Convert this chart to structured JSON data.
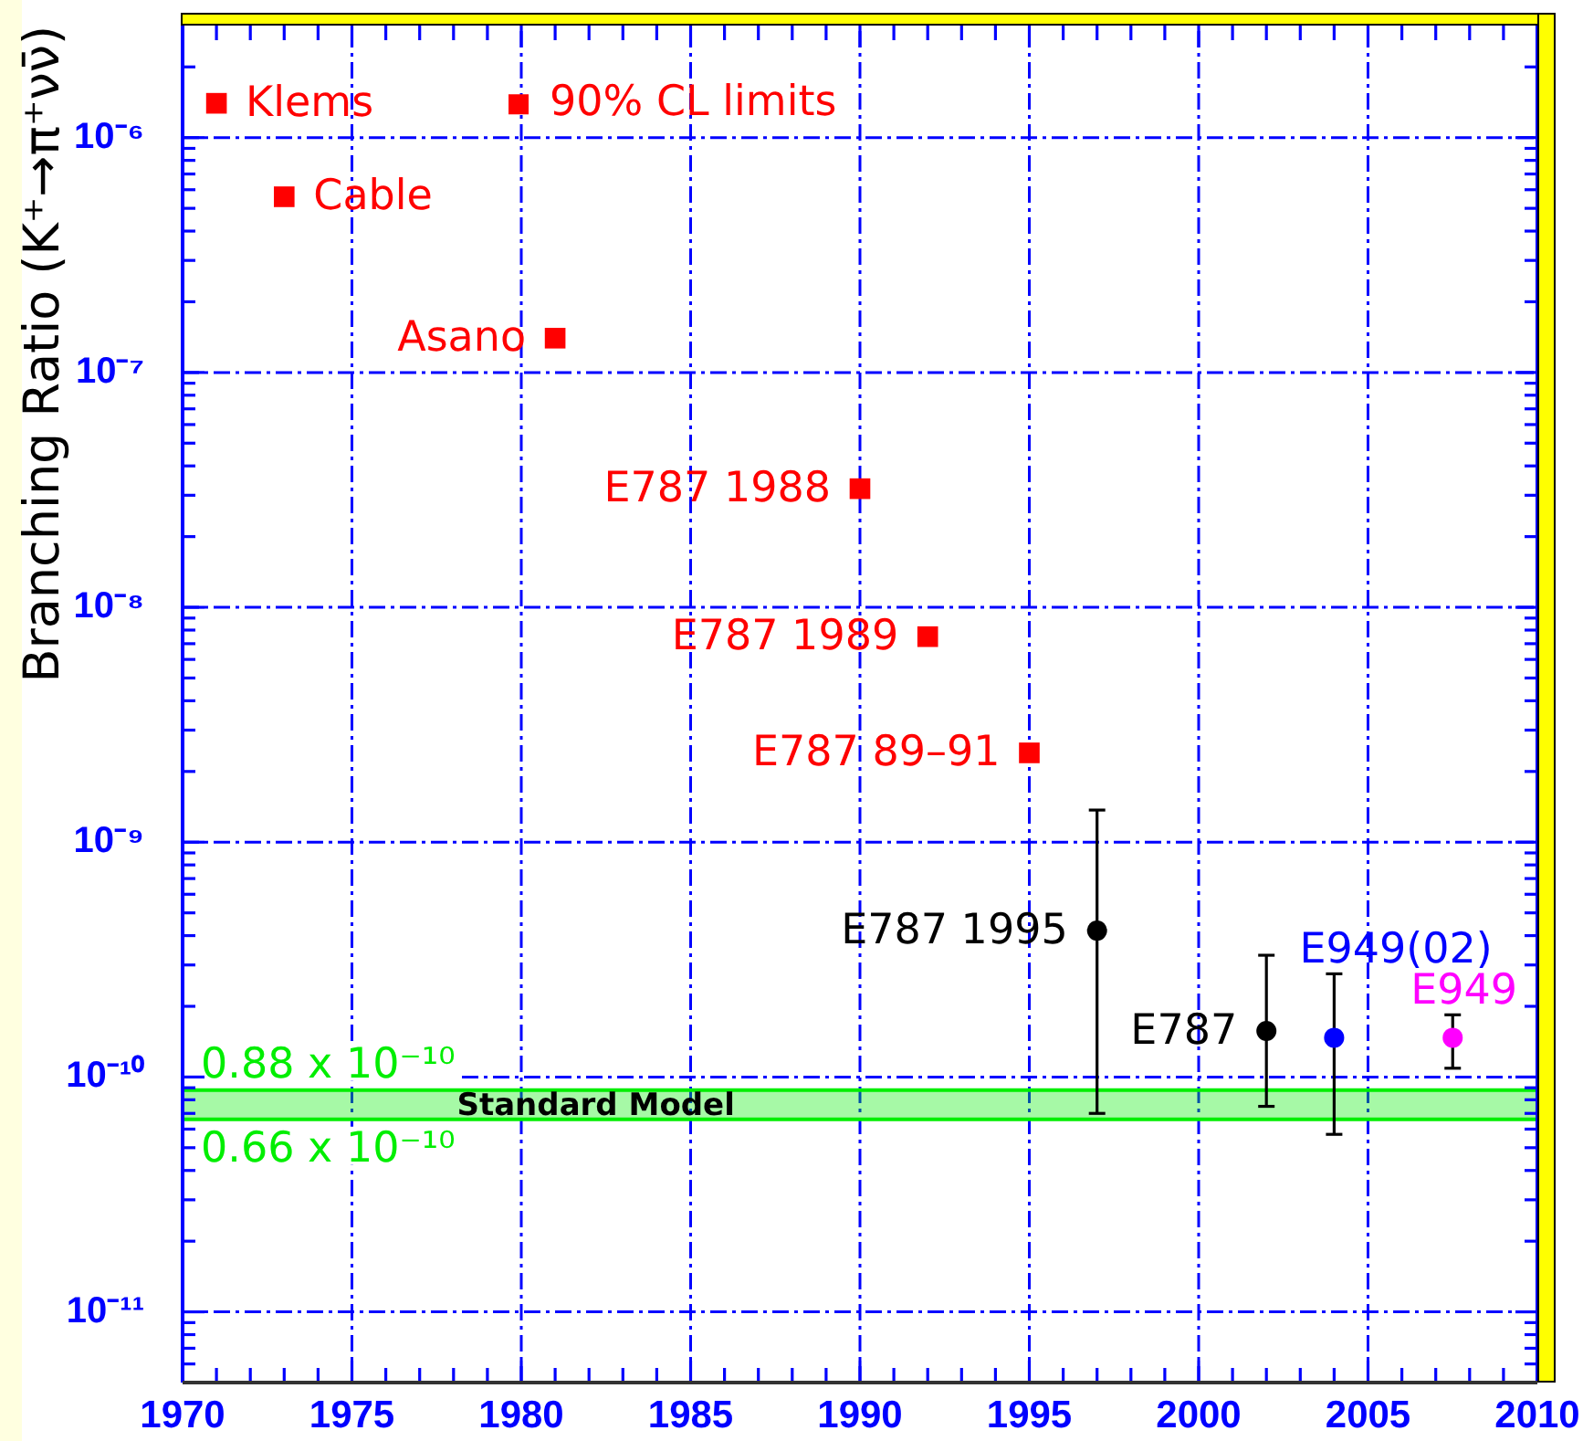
{
  "chart_data": {
    "type": "scatter",
    "ylabel": "Branching Ratio (K⁺→π⁺νν̄)",
    "xlim": [
      1970,
      2010
    ],
    "xticks": [
      1970,
      {
        "value": 1971,
        "label": null
      },
      {
        "value": 1972,
        "label": null
      },
      {
        "value": 1973,
        "label": null
      },
      {
        "value": 1974,
        "label": null
      },
      1975,
      {
        "value": 1976,
        "label": null
      },
      {
        "value": 1977,
        "label": null
      },
      {
        "value": 1978,
        "label": null
      },
      {
        "value": 1979,
        "label": null
      },
      1980,
      {
        "value": 1981,
        "label": null
      },
      {
        "value": 1982,
        "label": null
      },
      {
        "value": 1983,
        "label": null
      },
      {
        "value": 1984,
        "label": null
      },
      1985,
      {
        "value": 1986,
        "label": null
      },
      {
        "value": 1987,
        "label": null
      },
      {
        "value": 1988,
        "label": null
      },
      {
        "value": 1989,
        "label": null
      },
      1990,
      {
        "value": 1991,
        "label": null
      },
      {
        "value": 1992,
        "label": null
      },
      {
        "value": 1993,
        "label": null
      },
      {
        "value": 1994,
        "label": null
      },
      1995,
      {
        "value": 1996,
        "label": null
      },
      {
        "value": 1997,
        "label": null
      },
      {
        "value": 1998,
        "label": null
      },
      {
        "value": 1999,
        "label": null
      },
      2000,
      {
        "value": 2001,
        "label": null
      },
      {
        "value": 2002,
        "label": null
      },
      {
        "value": 2003,
        "label": null
      },
      {
        "value": 2004,
        "label": null
      },
      2005,
      {
        "value": 2006,
        "label": null
      },
      {
        "value": 2007,
        "label": null
      },
      {
        "value": 2008,
        "label": null
      },
      {
        "value": 2009,
        "label": null
      },
      2010
    ],
    "ylim": [
      5e-12,
      3e-06
    ],
    "yticks": [
      {
        "value": 6e-12,
        "label": null
      },
      {
        "value": 7e-12,
        "label": null
      },
      {
        "value": 8e-12,
        "label": null
      },
      {
        "value": 9e-12,
        "label": null
      },
      {
        "value": 1e-11,
        "label": "10⁻¹¹"
      },
      {
        "value": 2e-11,
        "label": null
      },
      {
        "value": 3e-11,
        "label": null
      },
      {
        "value": 4e-11,
        "label": null
      },
      {
        "value": 5e-11,
        "label": null
      },
      {
        "value": 6e-11,
        "label": null
      },
      {
        "value": 7e-11,
        "label": null
      },
      {
        "value": 8e-11,
        "label": null
      },
      {
        "value": 9e-11,
        "label": null
      },
      {
        "value": 1e-10,
        "label": "10⁻¹⁰"
      },
      {
        "value": 2e-10,
        "label": null
      },
      {
        "value": 3e-10,
        "label": null
      },
      {
        "value": 4e-10,
        "label": null
      },
      {
        "value": 5e-10,
        "label": null
      },
      {
        "value": 6e-10,
        "label": null
      },
      {
        "value": 7e-10,
        "label": null
      },
      {
        "value": 8e-10,
        "label": null
      },
      {
        "value": 9e-10,
        "label": null
      },
      {
        "value": 1e-09,
        "label": "10⁻⁹"
      },
      {
        "value": 2e-09,
        "label": null
      },
      {
        "value": 3e-09,
        "label": null
      },
      {
        "value": 4e-09,
        "label": null
      },
      {
        "value": 5e-09,
        "label": null
      },
      {
        "value": 6e-09,
        "label": null
      },
      {
        "value": 7e-09,
        "label": null
      },
      {
        "value": 8e-09,
        "label": null
      },
      {
        "value": 9e-09,
        "label": null
      },
      {
        "value": 1e-08,
        "label": "10⁻⁸"
      },
      {
        "value": 2e-08,
        "label": null
      },
      {
        "value": 3e-08,
        "label": null
      },
      {
        "value": 4e-08,
        "label": null
      },
      {
        "value": 5e-08,
        "label": null
      },
      {
        "value": 6e-08,
        "label": null
      },
      {
        "value": 7e-08,
        "label": null
      },
      {
        "value": 8e-08,
        "label": null
      },
      {
        "value": 9e-08,
        "label": null
      },
      {
        "value": 1e-07,
        "label": "10⁻⁷"
      },
      {
        "value": 2e-07,
        "label": null
      },
      {
        "value": 3e-07,
        "label": null
      },
      {
        "value": 4e-07,
        "label": null
      },
      {
        "value": 5e-07,
        "label": null
      },
      {
        "value": 6e-07,
        "label": null
      },
      {
        "value": 7e-07,
        "label": null
      },
      {
        "value": 8e-07,
        "label": null
      },
      {
        "value": 9e-07,
        "label": null
      },
      {
        "value": 1e-06,
        "label": "10⁻⁶"
      },
      {
        "value": 2e-06,
        "label": null
      }
    ],
    "log": "y",
    "grid": true,
    "legend": "top left",
    "series": [
      {
        "name": "90% CL limits",
        "color": "#ff0000",
        "marker": "square",
        "x": [
          1971,
          1973,
          1981,
          1990,
          1992,
          1995
        ],
        "values": [
          1.4e-06,
          5.6e-07,
          1.4e-07,
          3.2e-08,
          7.5e-09,
          2.4e-09
        ]
      },
      {
        "color": "#000000",
        "marker": "circle",
        "x": [
          1997,
          2002
        ],
        "values": [
          4.2e-10,
          1.57e-10
        ],
        "errors": [
          [
            7e-11,
            1.37e-09
          ],
          [
            7.5e-11,
            3.3e-10
          ]
        ]
      },
      {
        "color": "#0000ff",
        "marker": "circle",
        "x": [
          2004
        ],
        "values": [
          1.47e-10
        ],
        "errors": [
          [
            5.7e-11,
            2.75e-10
          ]
        ]
      },
      {
        "color": "#ff00ff",
        "marker": "circle",
        "x": [
          2007.5
        ],
        "values": [
          1.47e-10
        ],
        "errors": [
          [
            1.09e-10,
            1.84e-10
          ]
        ]
      }
    ],
    "bands": [
      {
        "axis": "y",
        "from": 6.6e-11,
        "to": 8.8e-11,
        "label": "Standard Model",
        "color": "#00ee00"
      }
    ],
    "annotations": [
      {
        "text": "Klems",
        "x": 1971,
        "y": 1.4e-06
      },
      {
        "text": "Cable",
        "x": 1973,
        "y": 5.6e-07
      },
      {
        "text": "Asano",
        "x": 1981,
        "y": 1.4e-07
      },
      {
        "text": "E787 1988",
        "x": 1990,
        "y": 3.2e-08
      },
      {
        "text": "E787 1989",
        "x": 1992,
        "y": 7.5e-09
      },
      {
        "text": "E787 89–91",
        "x": 1995,
        "y": 2.4e-09
      },
      {
        "text": "E787 1995",
        "x": 1997,
        "y": 4.2e-10
      },
      {
        "text": "E787",
        "x": 2002,
        "y": 1.57e-10
      },
      {
        "text": "E949(02)",
        "x": 2004,
        "y": 1.47e-10
      },
      {
        "text": "E949",
        "x": 2007.5,
        "y": 1.47e-10
      },
      "0.88 x 10⁻¹⁰",
      "0.66 x 10⁻¹⁰"
    ]
  }
}
